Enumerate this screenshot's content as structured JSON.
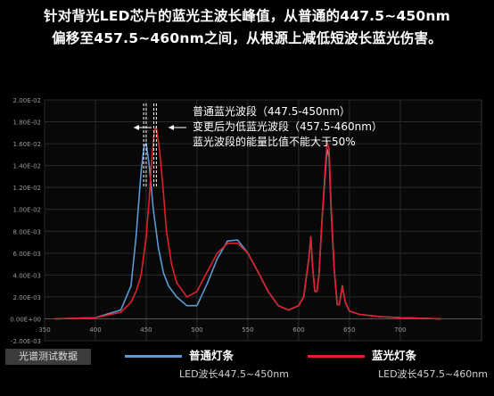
{
  "headline": {
    "line1": "针对背光LED芯片的蓝光主波长峰值，从普通的447.5~450nm",
    "line2": "偏移至457.5~460nm之间，从根源上减低短波长蓝光伤害。"
  },
  "annotation": {
    "line1": "普通蓝光波段（447.5-450nm）",
    "line2": "变更后为低蓝光波段（457.5-460nm）",
    "line3": "蓝光波段的能量比值不能大于50%"
  },
  "footer": {
    "badge": "光谱测试数据",
    "legend_normal": "普通灯条",
    "legend_normal_sub": "LED波长447.5~450nm",
    "legend_low": "蓝光灯条",
    "legend_low_sub": "LED波长457.5~460nm"
  },
  "colors": {
    "normal": "#5b9bd5",
    "low_blue": "#e0202a",
    "annotation_lines": "#ffffff",
    "grid": "#2a2a2a",
    "axis_text": "#9a9a9a"
  },
  "chart_data": {
    "type": "line",
    "xlim": [
      350,
      780
    ],
    "ylim": [
      -0.002,
      0.02
    ],
    "x_ticks": [
      350,
      400,
      450,
      500,
      550,
      600,
      650,
      700
    ],
    "x_tick_labels": [
      "350",
      "400",
      "450",
      "500",
      "550",
      "600",
      "650",
      "700"
    ],
    "y_ticks": [
      -0.002,
      0,
      0.002,
      0.004,
      0.006,
      0.008,
      0.01,
      0.012,
      0.014,
      0.016,
      0.018,
      0.02
    ],
    "y_tick_labels": [
      "-2.00E-03",
      "0.00E+00",
      "2.00E-03",
      "4.00E-03",
      "6.00E-03",
      "8.00E-03",
      "1.00E-02",
      "1.20E-02",
      "1.40E-02",
      "1.60E-02",
      "1.80E-02",
      "2.00E-02"
    ],
    "marker_lines_x": [
      447.5,
      450,
      457.5,
      460
    ],
    "series": [
      {
        "name": "普通灯条",
        "color": "#5b9bd5",
        "x": [
          360,
          400,
          425,
          435,
          440,
          445,
          448,
          450,
          453,
          457,
          462,
          467,
          472,
          480,
          490,
          500,
          510,
          520,
          530,
          540,
          550,
          560,
          570,
          580,
          590,
          600,
          605,
          610,
          612,
          614,
          616,
          618,
          620,
          623,
          626,
          628,
          630,
          632,
          635,
          638,
          640,
          643,
          646,
          650,
          660,
          680,
          700,
          740
        ],
        "y": [
          0,
          0.0001,
          0.0008,
          0.003,
          0.0075,
          0.0135,
          0.0158,
          0.016,
          0.014,
          0.01,
          0.0065,
          0.0042,
          0.003,
          0.002,
          0.0012,
          0.0012,
          0.0032,
          0.0055,
          0.0071,
          0.0072,
          0.006,
          0.0043,
          0.0025,
          0.0012,
          0.0008,
          0.0012,
          0.002,
          0.0055,
          0.0075,
          0.0045,
          0.0025,
          0.0025,
          0.004,
          0.009,
          0.013,
          0.0155,
          0.0148,
          0.01,
          0.0045,
          0.0013,
          0.0013,
          0.003,
          0.0015,
          0.0007,
          0.0004,
          0.0002,
          0.0001,
          0
        ]
      },
      {
        "name": "蓝光灯条",
        "color": "#e0202a",
        "x": [
          360,
          400,
          425,
          435,
          440,
          445,
          450,
          453,
          455,
          458,
          460,
          463,
          467,
          470,
          475,
          480,
          490,
          500,
          510,
          520,
          530,
          540,
          550,
          560,
          570,
          580,
          590,
          600,
          605,
          610,
          612,
          614,
          616,
          618,
          620,
          623,
          626,
          628,
          630,
          632,
          635,
          638,
          640,
          643,
          646,
          650,
          660,
          680,
          700,
          740
        ],
        "y": [
          0,
          0.0001,
          0.0006,
          0.0015,
          0.0025,
          0.004,
          0.0075,
          0.011,
          0.014,
          0.0172,
          0.0175,
          0.0155,
          0.0115,
          0.008,
          0.005,
          0.0033,
          0.002,
          0.0025,
          0.0043,
          0.006,
          0.0069,
          0.0069,
          0.006,
          0.0043,
          0.0025,
          0.0012,
          0.0008,
          0.0012,
          0.002,
          0.0055,
          0.0075,
          0.0045,
          0.0025,
          0.0025,
          0.004,
          0.009,
          0.0135,
          0.0162,
          0.0155,
          0.0105,
          0.0045,
          0.0013,
          0.0013,
          0.003,
          0.0015,
          0.0007,
          0.0004,
          0.0002,
          0.0001,
          0
        ]
      }
    ]
  }
}
